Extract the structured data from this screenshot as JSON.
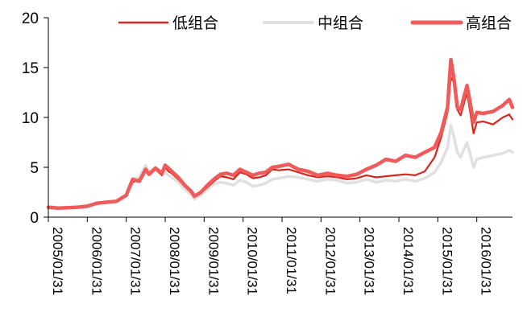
{
  "chart_data": {
    "type": "line",
    "title": "",
    "xlabel": "",
    "ylabel": "",
    "ylim": [
      0,
      20
    ],
    "y_ticks": [
      "0",
      "5",
      "10",
      "15",
      "20"
    ],
    "x_tick_labels": [
      "2005/01/31",
      "2006/01/31",
      "2007/01/31",
      "2008/01/31",
      "2009/01/31",
      "2010/01/31",
      "2011/01/31",
      "2012/01/31",
      "2013/01/31",
      "2014/01/31",
      "2015/01/31",
      "2016/01/31"
    ],
    "legend_position": "top",
    "grid": false,
    "x": [
      "2005-01",
      "2005-04",
      "2005-07",
      "2005-10",
      "2006-01",
      "2006-04",
      "2006-07",
      "2006-10",
      "2007-01",
      "2007-03",
      "2007-05",
      "2007-07",
      "2007-08",
      "2007-10",
      "2007-12",
      "2008-01",
      "2008-02",
      "2008-03",
      "2008-05",
      "2008-07",
      "2008-09",
      "2008-10",
      "2008-12",
      "2009-02",
      "2009-04",
      "2009-06",
      "2009-08",
      "2009-10",
      "2009-12",
      "2010-02",
      "2010-04",
      "2010-06",
      "2010-08",
      "2010-10",
      "2010-12",
      "2011-03",
      "2011-06",
      "2011-09",
      "2011-12",
      "2012-03",
      "2012-06",
      "2012-09",
      "2012-12",
      "2013-03",
      "2013-06",
      "2013-09",
      "2013-12",
      "2014-03",
      "2014-06",
      "2014-09",
      "2014-12",
      "2015-02",
      "2015-04",
      "2015-05",
      "2015-06",
      "2015-07",
      "2015-08",
      "2015-10",
      "2015-12",
      "2016-01",
      "2016-03",
      "2016-06",
      "2016-09",
      "2016-11",
      "2016-12"
    ],
    "series": [
      {
        "name": "低组合",
        "color": "#d9261c",
        "values": [
          1.0,
          0.9,
          0.95,
          1.0,
          1.1,
          1.4,
          1.5,
          1.6,
          2.2,
          3.5,
          3.8,
          4.7,
          4.3,
          4.8,
          4.2,
          5.0,
          4.6,
          4.4,
          3.8,
          3.1,
          2.5,
          2.0,
          2.4,
          3.0,
          3.6,
          4.1,
          4.0,
          3.8,
          4.5,
          4.3,
          3.9,
          4.0,
          4.2,
          4.8,
          4.7,
          4.8,
          4.5,
          4.2,
          4.0,
          4.1,
          4.0,
          3.8,
          3.9,
          4.2,
          4.0,
          4.1,
          4.2,
          4.3,
          4.2,
          4.6,
          6.0,
          8.0,
          10.5,
          14.0,
          13.5,
          10.8,
          10.2,
          12.5,
          8.4,
          9.5,
          9.6,
          9.3,
          10.0,
          10.3,
          9.8
        ]
      },
      {
        "name": "中组合",
        "color": "#e0e0e0",
        "values": [
          1.0,
          0.9,
          0.95,
          1.0,
          1.1,
          1.4,
          1.5,
          1.6,
          2.2,
          3.8,
          4.0,
          5.2,
          4.5,
          5.0,
          4.3,
          4.5,
          4.2,
          4.0,
          3.5,
          2.8,
          2.2,
          1.8,
          2.2,
          2.8,
          3.3,
          3.5,
          3.4,
          3.2,
          3.7,
          3.5,
          3.1,
          3.2,
          3.4,
          3.8,
          3.9,
          4.1,
          4.0,
          3.8,
          3.6,
          3.8,
          3.7,
          3.4,
          3.5,
          3.8,
          3.5,
          3.7,
          3.6,
          3.8,
          3.6,
          3.9,
          4.5,
          5.5,
          7.0,
          9.2,
          8.0,
          6.5,
          6.0,
          7.5,
          5.0,
          5.8,
          6.0,
          6.2,
          6.4,
          6.7,
          6.5
        ]
      },
      {
        "name": "高组合",
        "color": "#f05a5a",
        "values": [
          1.0,
          0.9,
          0.95,
          1.0,
          1.1,
          1.4,
          1.5,
          1.6,
          2.2,
          3.8,
          3.6,
          4.8,
          4.3,
          4.9,
          4.4,
          5.2,
          4.9,
          4.6,
          4.0,
          3.2,
          2.6,
          2.1,
          2.5,
          3.2,
          3.8,
          4.3,
          4.4,
          4.2,
          4.8,
          4.5,
          4.2,
          4.4,
          4.5,
          5.0,
          5.1,
          5.3,
          4.8,
          4.6,
          4.2,
          4.4,
          4.2,
          4.1,
          4.3,
          4.8,
          5.2,
          5.8,
          5.6,
          6.2,
          6.0,
          6.5,
          7.0,
          8.5,
          11.0,
          15.8,
          13.8,
          11.0,
          10.8,
          13.2,
          9.5,
          10.5,
          10.4,
          10.6,
          11.2,
          11.8,
          11.0
        ]
      }
    ]
  }
}
